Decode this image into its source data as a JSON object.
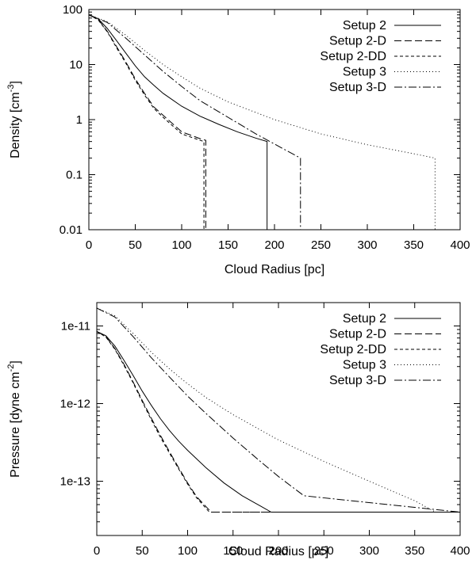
{
  "chart_data": [
    {
      "type": "line",
      "xlabel": "Cloud Radius [pc]",
      "ylabel": "Density [cm",
      "ylabel_unit_exponent": "-3",
      "ylabel_close": "]",
      "yscale": "log",
      "xlim": [
        0,
        400
      ],
      "ylim": [
        0.01,
        100
      ],
      "xticks": [
        0,
        50,
        100,
        150,
        200,
        250,
        300,
        350,
        400
      ],
      "xtick_labels": [
        "0",
        "50",
        "100",
        "150",
        "200",
        "250",
        "300",
        "350",
        "400"
      ],
      "yticks": [
        0.01,
        0.1,
        1,
        10,
        100
      ],
      "ytick_labels": [
        "0.01",
        "0.1",
        "1",
        "10",
        "100"
      ],
      "grid": false,
      "legend_position": "top-right",
      "series": [
        {
          "name": "Setup 2",
          "dash": "",
          "x": [
            0,
            10,
            20,
            30,
            40,
            50,
            60,
            70,
            80,
            100,
            120,
            140,
            160,
            180,
            192,
            192
          ],
          "y": [
            80,
            68,
            45,
            27,
            16,
            9.5,
            6,
            4.2,
            3,
            1.75,
            1.15,
            0.82,
            0.6,
            0.46,
            0.4,
            0.01
          ]
        },
        {
          "name": "Setup 2-D",
          "dash": "9,4",
          "x": [
            0,
            10,
            20,
            30,
            40,
            50,
            60,
            70,
            80,
            100,
            120,
            126,
            126
          ],
          "y": [
            80,
            66,
            40,
            21,
            11,
            5.5,
            3,
            1.7,
            1.2,
            0.6,
            0.45,
            0.42,
            0.01
          ]
        },
        {
          "name": "Setup 2-DD",
          "dash": "4,3",
          "x": [
            0,
            10,
            20,
            30,
            40,
            50,
            60,
            70,
            80,
            100,
            120,
            124,
            124
          ],
          "y": [
            80,
            65,
            39,
            20,
            10.5,
            5.2,
            2.8,
            1.6,
            1.1,
            0.55,
            0.42,
            0.4,
            0.01
          ]
        },
        {
          "name": "Setup 3",
          "dash": "1,3",
          "x": [
            0,
            20,
            40,
            60,
            80,
            100,
            120,
            150,
            200,
            250,
            300,
            350,
            373,
            373
          ],
          "y": [
            80,
            60,
            34,
            18,
            10,
            6,
            3.7,
            2.1,
            1.0,
            0.55,
            0.35,
            0.24,
            0.2,
            0.01
          ]
        },
        {
          "name": "Setup 3-D",
          "dash": "10,3,2,3",
          "x": [
            0,
            20,
            40,
            60,
            80,
            100,
            120,
            150,
            180,
            200,
            228,
            228
          ],
          "y": [
            80,
            58,
            30,
            15,
            7.5,
            4,
            2.2,
            1.1,
            0.55,
            0.36,
            0.2,
            0.01
          ]
        }
      ]
    },
    {
      "type": "line",
      "xlabel": "Cloud Radius [pc]",
      "ylabel": "Pressure [dyne cm",
      "ylabel_unit_exponent": "-2",
      "ylabel_close": "]",
      "yscale": "log",
      "xlim": [
        0,
        400
      ],
      "ylim": [
        2e-14,
        2e-11
      ],
      "xticks": [
        0,
        50,
        100,
        150,
        200,
        250,
        300,
        350,
        400
      ],
      "xtick_labels": [
        "0",
        "50",
        "100",
        "150",
        "200",
        "250",
        "300",
        "350",
        "400"
      ],
      "yticks": [
        1e-13,
        1e-12,
        1e-11
      ],
      "ytick_labels": [
        "1e-13",
        "1e-12",
        "1e-11"
      ],
      "grid": false,
      "legend_position": "top-right",
      "series": [
        {
          "name": "Setup 2",
          "dash": "",
          "x": [
            0,
            10,
            20,
            30,
            40,
            50,
            60,
            70,
            80,
            90,
            100,
            120,
            140,
            160,
            180,
            192,
            400
          ],
          "y": [
            8.5e-12,
            7.5e-12,
            5.5e-12,
            3.6e-12,
            2.3e-12,
            1.45e-12,
            9.5e-13,
            6.4e-13,
            4.5e-13,
            3.3e-13,
            2.5e-13,
            1.5e-13,
            9.5e-14,
            6.5e-14,
            4.8e-14,
            4e-14,
            4e-14
          ]
        },
        {
          "name": "Setup 2-D",
          "dash": "9,4",
          "x": [
            0,
            10,
            20,
            30,
            40,
            50,
            60,
            70,
            80,
            90,
            100,
            110,
            126,
            400
          ],
          "y": [
            8.5e-12,
            7.3e-12,
            5.1e-12,
            3.2e-12,
            1.9e-12,
            1.1e-12,
            6.5e-13,
            3.9e-13,
            2.4e-13,
            1.5e-13,
            9.5e-14,
            6.3e-14,
            4e-14,
            4e-14
          ]
        },
        {
          "name": "Setup 2-DD",
          "dash": "4,3",
          "x": [
            0,
            10,
            20,
            30,
            40,
            50,
            60,
            70,
            80,
            90,
            100,
            110,
            124,
            400
          ],
          "y": [
            8.5e-12,
            7.2e-12,
            5e-12,
            3.1e-12,
            1.85e-12,
            1.06e-12,
            6.2e-13,
            3.7e-13,
            2.3e-13,
            1.45e-13,
            9.2e-14,
            6.1e-14,
            4e-14,
            4e-14
          ]
        },
        {
          "name": "Setup 3",
          "dash": "1,3",
          "x": [
            0,
            20,
            40,
            60,
            80,
            100,
            120,
            150,
            200,
            250,
            300,
            350,
            373,
            400
          ],
          "y": [
            1.7e-11,
            1.35e-11,
            8e-12,
            4.6e-12,
            2.8e-12,
            1.8e-12,
            1.2e-12,
            7.2e-13,
            3.4e-13,
            1.8e-13,
            1e-13,
            5.6e-14,
            4e-14,
            4e-14
          ]
        },
        {
          "name": "Setup 3-D",
          "dash": "10,3,2,3",
          "x": [
            0,
            20,
            40,
            60,
            80,
            100,
            120,
            150,
            180,
            200,
            228,
            400
          ],
          "y": [
            1.7e-11,
            1.3e-11,
            7.3e-12,
            3.9e-12,
            2.2e-12,
            1.25e-12,
            7.5e-13,
            3.6e-13,
            1.8e-13,
            1.15e-13,
            6.5e-14,
            4e-14
          ]
        }
      ]
    }
  ]
}
